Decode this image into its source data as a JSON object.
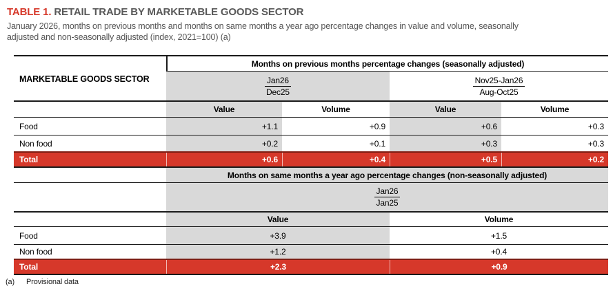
{
  "title": {
    "prefix": "TABLE 1.",
    "text": " RETAIL TRADE BY MARKETABLE GOODS SECTOR"
  },
  "subtitle": {
    "line1": "January 2026, months on previous months and months on same months a year ago percentage changes in value and volume,  seasonally",
    "line2": "adjusted and non-seasonally adjusted (index, 2021=100) (a)"
  },
  "row_header": "MARKETABLE GOODS SECTOR",
  "section1": {
    "header": "Months on previous months percentage changes (seasonally adjusted)",
    "period1": {
      "top": "Jan26",
      "bottom": "Dec25"
    },
    "period2": {
      "top": "Nov25-Jan26",
      "bottom": "Aug-Oct25"
    },
    "col_headers": [
      "Value",
      "Volume",
      "Value",
      "Volume"
    ],
    "rows": [
      {
        "label": "Food",
        "values": [
          "+1.1",
          "+0.9",
          "+0.6",
          "+0.3"
        ]
      },
      {
        "label": "Non food",
        "values": [
          "+0.2",
          "+0.1",
          "+0.3",
          "+0.3"
        ]
      }
    ],
    "total": {
      "label": "Total",
      "values": [
        "+0.6",
        "+0.4",
        "+0.5",
        "+0.2"
      ]
    }
  },
  "section2": {
    "header": "Months on same months a year ago percentage changes (non-seasonally adjusted)",
    "period1": {
      "top": "Jan26",
      "bottom": "Jan25"
    },
    "col_headers": [
      "Value",
      "Volume"
    ],
    "rows": [
      {
        "label": "Food",
        "values": [
          "+3.9",
          "+1.5"
        ]
      },
      {
        "label": "Non food",
        "values": [
          "+1.2",
          "+0.4"
        ]
      }
    ],
    "total": {
      "label": "Total",
      "values": [
        "+2.3",
        "+0.9"
      ]
    }
  },
  "footnote": {
    "marker": "(a)",
    "text": "Provisional data"
  },
  "colors": {
    "accent_red": "#d6382a",
    "shade_gray": "#d9d9d9",
    "title_gray": "#595959"
  }
}
